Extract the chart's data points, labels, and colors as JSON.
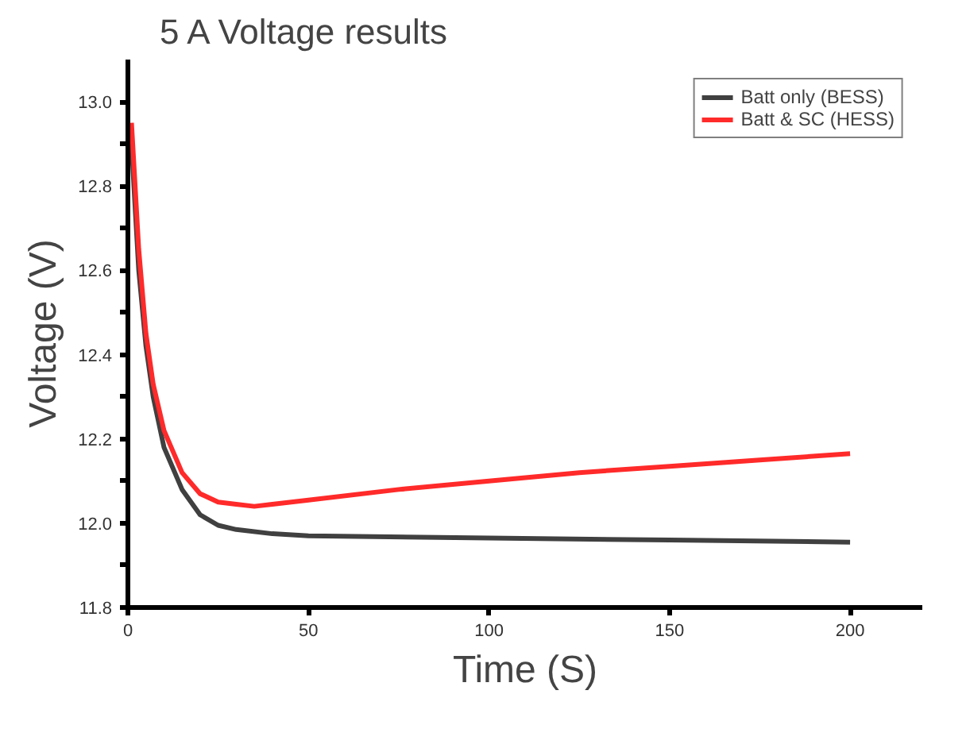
{
  "chart_data": {
    "type": "line",
    "title": "5 A Voltage results",
    "xlabel": "Time (S)",
    "ylabel": "Voltage (V)",
    "xlim": [
      0,
      220
    ],
    "xticks": [
      0,
      50,
      100,
      150,
      200
    ],
    "ylim": [
      11.8,
      13.1
    ],
    "yticks": [
      11.8,
      {
        "value": 11.9,
        "label": null
      },
      "12.0",
      {
        "value": 12.1,
        "label": null
      },
      12.2,
      {
        "value": 12.3,
        "label": null
      },
      12.4,
      {
        "value": 12.5,
        "label": null
      },
      12.6,
      {
        "value": 12.7,
        "label": null
      },
      12.8,
      {
        "value": 12.9,
        "label": null
      },
      "13.0"
    ],
    "grid": false,
    "legend": "top right",
    "line_style": "solid",
    "series": [
      {
        "name": "Batt only (BESS)",
        "color": "#404040",
        "x": [
          1,
          2,
          3,
          5,
          7,
          10,
          15,
          20,
          25,
          30,
          40,
          50,
          100,
          150,
          200
        ],
        "values": [
          12.9,
          12.75,
          12.6,
          12.42,
          12.3,
          12.18,
          12.08,
          12.02,
          11.995,
          11.985,
          11.975,
          11.97,
          11.965,
          11.96,
          11.955
        ]
      },
      {
        "name": "Batt & SC (HESS)",
        "color": "#ff2a2a",
        "x": [
          1,
          2,
          3,
          5,
          7,
          10,
          15,
          20,
          25,
          30,
          35,
          40,
          50,
          75,
          100,
          125,
          150,
          175,
          200
        ],
        "values": [
          12.95,
          12.8,
          12.65,
          12.45,
          12.33,
          12.22,
          12.12,
          12.07,
          12.05,
          12.045,
          12.04,
          12.045,
          12.055,
          12.08,
          12.1,
          12.12,
          12.135,
          12.15,
          12.165
        ]
      }
    ]
  }
}
